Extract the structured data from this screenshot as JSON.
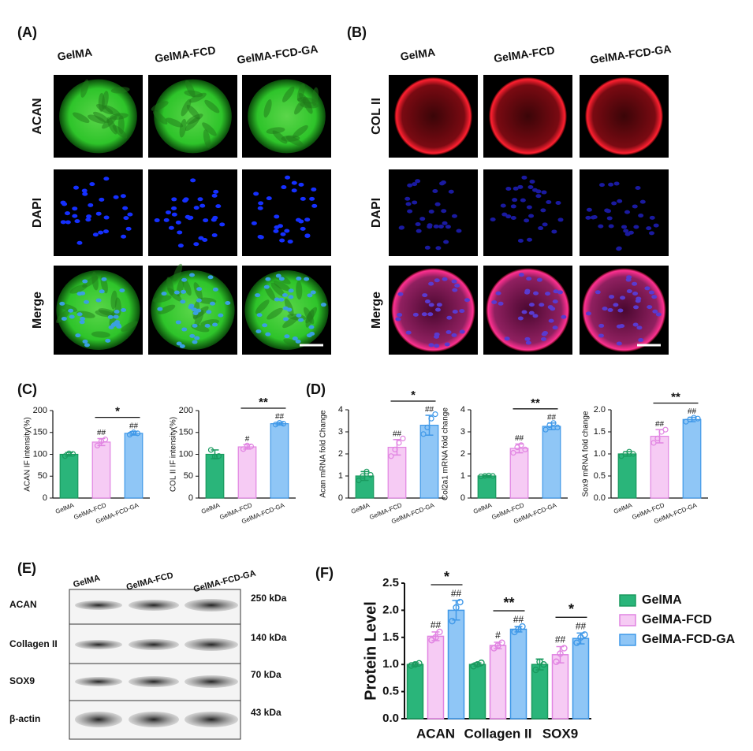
{
  "panel_a": {
    "label": "(A)",
    "columns": [
      "GelMA",
      "GelMA-FCD",
      "GelMA-FCD-GA"
    ],
    "rows": [
      "ACAN",
      "DAPI",
      "Merge"
    ]
  },
  "panel_b": {
    "label": "(B)",
    "columns": [
      "GelMA",
      "GelMA-FCD",
      "GelMA-FCD-GA"
    ],
    "rows": [
      "COL II",
      "DAPI",
      "Merge"
    ]
  },
  "panel_c": {
    "label": "(C)"
  },
  "panel_d": {
    "label": "(D)"
  },
  "panel_e": {
    "label": "(E)",
    "columns": [
      "GelMA",
      "GelMA-FCD",
      "GelMA-FCD-GA"
    ],
    "rows": [
      "ACAN",
      "Collagen II",
      "SOX9",
      "β-actin"
    ],
    "sizes": [
      "250 kDa",
      "140 kDa",
      "70 kDa",
      "43 kDa"
    ]
  },
  "panel_f": {
    "label": "(F)"
  },
  "chart_data": [
    {
      "type": "bar",
      "ylabel": "ACAN IF intensity(%)",
      "categories": [
        "GelMA",
        "GelMA-FCD",
        "GelMA-FCD-GA"
      ],
      "values": [
        100,
        128,
        148
      ],
      "errors": [
        4,
        8,
        4
      ],
      "points": [
        [
          96,
          102,
          101
        ],
        [
          120,
          130,
          134
        ],
        [
          145,
          150,
          148
        ]
      ],
      "annotations": [
        null,
        "##",
        "##"
      ],
      "significance": "*",
      "colors": [
        "#2ab57a",
        "#f6cbf4",
        "#8fc6f6"
      ],
      "edge_colors": [
        "#1a9a5f",
        "#e184e2",
        "#3f98e8"
      ],
      "ylim": [
        0,
        200
      ],
      "yticks": [
        0,
        50,
        100,
        150,
        200
      ]
    },
    {
      "type": "bar",
      "ylabel": "COL II IF intensity(%)",
      "categories": [
        "GelMA",
        "GelMA-FCD",
        "GelMA-FCD-GA"
      ],
      "values": [
        100,
        117,
        170
      ],
      "errors": [
        10,
        5,
        3
      ],
      "points": [
        [
          110,
          95,
          96
        ],
        [
          112,
          120,
          118
        ],
        [
          168,
          172,
          170
        ]
      ],
      "annotations": [
        null,
        "#",
        "##"
      ],
      "significance": "**",
      "colors": [
        "#2ab57a",
        "#f6cbf4",
        "#8fc6f6"
      ],
      "edge_colors": [
        "#1a9a5f",
        "#e184e2",
        "#3f98e8"
      ],
      "ylim": [
        0,
        200
      ],
      "yticks": [
        0,
        50,
        100,
        150,
        200
      ]
    },
    {
      "type": "bar",
      "ylabel": "Acan mRNA fold Change",
      "categories": [
        "GelMA",
        "GelMA-FCD",
        "GelMA-FCD-GA"
      ],
      "values": [
        1.0,
        2.3,
        3.3
      ],
      "errors": [
        0.2,
        0.35,
        0.45
      ],
      "points": [
        [
          0.8,
          1.0,
          1.2,
          1.05
        ],
        [
          1.9,
          2.2,
          2.5,
          2.7
        ],
        [
          2.9,
          3.2,
          3.6,
          3.8
        ]
      ],
      "annotations": [
        null,
        "##",
        "##"
      ],
      "significance": "*",
      "colors": [
        "#2ab57a",
        "#f6cbf4",
        "#8fc6f6"
      ],
      "edge_colors": [
        "#1a9a5f",
        "#e184e2",
        "#3f98e8"
      ],
      "ylim": [
        0,
        4
      ],
      "yticks": [
        0,
        1,
        2,
        3,
        4
      ]
    },
    {
      "type": "bar",
      "ylabel": "Col2a1 mRNA fold change",
      "categories": [
        "GelMA",
        "GelMA-FCD",
        "GelMA-FCD-GA"
      ],
      "values": [
        1.0,
        2.25,
        3.25
      ],
      "errors": [
        0.03,
        0.2,
        0.15
      ],
      "points": [
        [
          0.98,
          1.0,
          1.02,
          1.0
        ],
        [
          2.05,
          2.3,
          2.4,
          2.2
        ],
        [
          3.1,
          3.3,
          3.4,
          3.2
        ]
      ],
      "annotations": [
        null,
        "##",
        "##"
      ],
      "significance": "**",
      "colors": [
        "#2ab57a",
        "#f6cbf4",
        "#8fc6f6"
      ],
      "edge_colors": [
        "#1a9a5f",
        "#e184e2",
        "#3f98e8"
      ],
      "ylim": [
        0,
        4
      ],
      "yticks": [
        0,
        1,
        2,
        3,
        4
      ]
    },
    {
      "type": "bar",
      "ylabel": "Sox9 mRNA fold change",
      "categories": [
        "GelMA",
        "GelMA-FCD",
        "GelMA-FCD-GA"
      ],
      "values": [
        1.0,
        1.4,
        1.78
      ],
      "errors": [
        0.05,
        0.15,
        0.05
      ],
      "points": [
        [
          0.95,
          1.0,
          1.05,
          1.0
        ],
        [
          1.25,
          1.35,
          1.5,
          1.55
        ],
        [
          1.73,
          1.78,
          1.82,
          1.8
        ]
      ],
      "annotations": [
        null,
        "##",
        "##"
      ],
      "significance": "**",
      "colors": [
        "#2ab57a",
        "#f6cbf4",
        "#8fc6f6"
      ],
      "edge_colors": [
        "#1a9a5f",
        "#e184e2",
        "#3f98e8"
      ],
      "ylim": [
        0,
        2
      ],
      "yticks": [
        {
          "value": 0,
          "label": "0.0"
        },
        0.5,
        {
          "value": 1,
          "label": "1.0"
        },
        1.5,
        {
          "value": 2,
          "label": "2.0"
        }
      ]
    },
    {
      "type": "grouped_bar",
      "ylabel": "Protein Level",
      "categories": [
        "ACAN",
        "Collagen II",
        "SOX9"
      ],
      "series": [
        {
          "name": "GelMA",
          "color": "#2ab57a",
          "edge_color": "#1a9a5f",
          "values": [
            1.0,
            1.0,
            1.0
          ],
          "errors": [
            0.03,
            0.03,
            0.1
          ],
          "points": [
            [
              0.98,
              1.0,
              1.02
            ],
            [
              0.97,
              1.0,
              1.03
            ],
            [
              0.9,
              1.05,
              1.0
            ]
          ],
          "annotations": [
            null,
            null,
            null
          ]
        },
        {
          "name": "GelMA-FCD",
          "color": "#f6cbf4",
          "edge_color": "#e184e2",
          "values": [
            1.52,
            1.35,
            1.18
          ],
          "errors": [
            0.08,
            0.06,
            0.15
          ],
          "points": [
            [
              1.45,
              1.5,
              1.6
            ],
            [
              1.3,
              1.35,
              1.4
            ],
            [
              1.05,
              1.2,
              1.3
            ]
          ],
          "annotations": [
            "##",
            "#",
            "##"
          ]
        },
        {
          "name": "GelMA-FCD-GA",
          "color": "#8fc6f6",
          "edge_color": "#3f98e8",
          "values": [
            2.0,
            1.65,
            1.48
          ],
          "errors": [
            0.18,
            0.05,
            0.1
          ],
          "points": [
            [
              1.8,
              2.05,
              2.15
            ],
            [
              1.6,
              1.65,
              1.7
            ],
            [
              1.4,
              1.5,
              1.55
            ]
          ],
          "annotations": [
            "##",
            "##",
            "##"
          ]
        }
      ],
      "significance": [
        "*",
        "**",
        "*"
      ],
      "ylim": [
        0,
        2.5
      ],
      "yticks": [
        {
          "value": 0,
          "label": "0.0"
        },
        0.5,
        {
          "value": 1,
          "label": "1.0"
        },
        1.5,
        {
          "value": 2,
          "label": "2.0"
        },
        2.5
      ]
    }
  ]
}
